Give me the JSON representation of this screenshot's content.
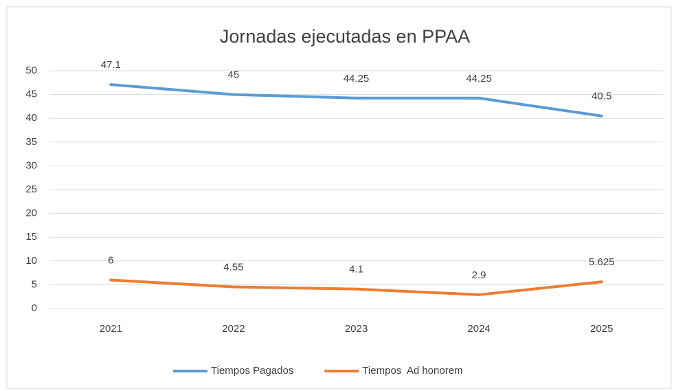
{
  "chart_data": {
    "type": "line",
    "title": "Jornadas ejecutadas en PPAA",
    "categories": [
      "2021",
      "2022",
      "2023",
      "2024",
      "2025"
    ],
    "series": [
      {
        "name": "Tiempos Pagados",
        "color": "#5b9bd5",
        "values": [
          47.1,
          45,
          44.25,
          44.25,
          40.5
        ]
      },
      {
        "name": "Tiempos  Ad honorem",
        "color": "#ed7d31",
        "values": [
          6,
          4.55,
          4.1,
          2.9,
          5.625
        ]
      }
    ],
    "ylim": [
      0,
      50
    ],
    "yticks": [
      0,
      5,
      10,
      15,
      20,
      25,
      30,
      35,
      40,
      45,
      50
    ],
    "grid": true,
    "legend": "bottom",
    "data_labels": true
  }
}
